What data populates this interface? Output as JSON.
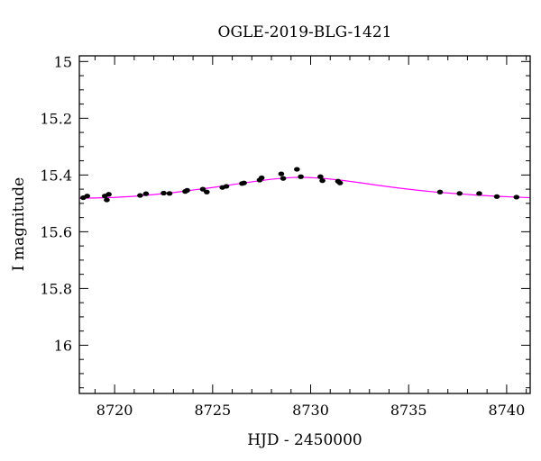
{
  "chart_data": {
    "type": "scatter",
    "title": "OGLE-2019-BLG-1421",
    "xlabel": "HJD - 2450000",
    "ylabel": "I magnitude",
    "xlim": [
      8718.2,
      8741.2
    ],
    "ylim": [
      16.17,
      14.98
    ],
    "y_inverted": true,
    "grid": false,
    "x_ticks": [
      8720,
      8725,
      8730,
      8735,
      8740
    ],
    "y_ticks": [
      15,
      15.2,
      15.4,
      15.6,
      15.8,
      16
    ],
    "x_tick_labels": [
      "8720",
      "8725",
      "8730",
      "8735",
      "8740"
    ],
    "y_tick_labels": [
      "15",
      "15.2",
      "15.4",
      "15.6",
      "15.8",
      "16"
    ],
    "series": [
      {
        "kind": "points",
        "color": "#000000",
        "points": [
          [
            8718.4,
            15.48
          ],
          [
            8718.6,
            15.474
          ],
          [
            8719.5,
            15.474
          ],
          [
            8719.6,
            15.488
          ],
          [
            8719.7,
            15.468
          ],
          [
            8721.3,
            15.472
          ],
          [
            8721.6,
            15.466
          ],
          [
            8722.5,
            15.464
          ],
          [
            8722.8,
            15.465
          ],
          [
            8723.6,
            15.458
          ],
          [
            8723.7,
            15.454
          ],
          [
            8724.5,
            15.45
          ],
          [
            8724.7,
            15.46
          ],
          [
            8725.5,
            15.444
          ],
          [
            8725.7,
            15.44
          ],
          [
            8726.5,
            15.43
          ],
          [
            8726.6,
            15.428
          ],
          [
            8727.4,
            15.418
          ],
          [
            8727.5,
            15.41
          ],
          [
            8728.5,
            15.396
          ],
          [
            8728.6,
            15.412
          ],
          [
            8729.3,
            15.38
          ],
          [
            8729.5,
            15.406
          ],
          [
            8730.5,
            15.406
          ],
          [
            8730.6,
            15.42
          ],
          [
            8731.4,
            15.422
          ],
          [
            8731.5,
            15.428
          ],
          [
            8736.6,
            15.46
          ],
          [
            8737.6,
            15.465
          ],
          [
            8738.6,
            15.465
          ],
          [
            8739.5,
            15.476
          ],
          [
            8740.5,
            15.478
          ]
        ]
      },
      {
        "kind": "model",
        "color": "#ff00ff",
        "curve": [
          [
            8718.2,
            15.482
          ],
          [
            8719.0,
            15.481
          ],
          [
            8720.0,
            15.479
          ],
          [
            8721.0,
            15.475
          ],
          [
            8722.0,
            15.469
          ],
          [
            8723.0,
            15.462
          ],
          [
            8724.0,
            15.453
          ],
          [
            8725.0,
            15.444
          ],
          [
            8726.0,
            15.434
          ],
          [
            8727.0,
            15.424
          ],
          [
            8728.0,
            15.415
          ],
          [
            8729.0,
            15.409
          ],
          [
            8729.6,
            15.408
          ],
          [
            8730.5,
            15.411
          ],
          [
            8731.5,
            15.418
          ],
          [
            8732.5,
            15.427
          ],
          [
            8733.5,
            15.437
          ],
          [
            8734.5,
            15.446
          ],
          [
            8735.5,
            15.454
          ],
          [
            8736.5,
            15.461
          ],
          [
            8737.5,
            15.466
          ],
          [
            8738.5,
            15.471
          ],
          [
            8739.5,
            15.475
          ],
          [
            8740.5,
            15.478
          ],
          [
            8741.2,
            15.48
          ]
        ]
      }
    ]
  }
}
